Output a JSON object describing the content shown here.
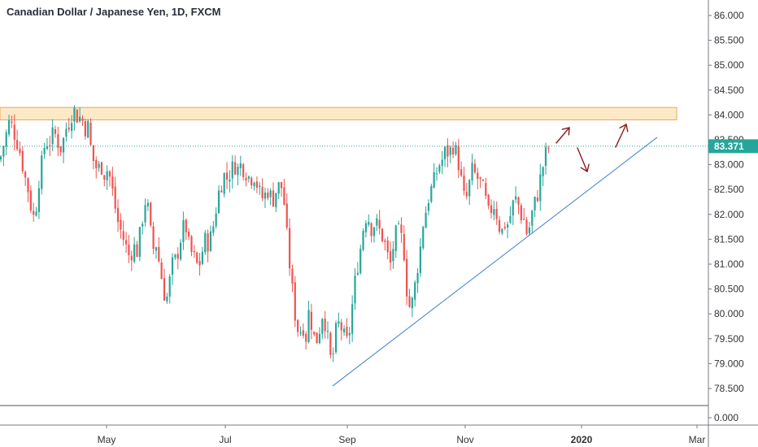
{
  "title": "Canadian Dollar / Japanese Yen, 1D, FXCM",
  "colors": {
    "up": "#26a69a",
    "down": "#ef5350",
    "resistance_fill": "#fde9c8",
    "resistance_stroke": "#e9a955",
    "trendline": "#3d7fd0",
    "last_price_line": "#26a69a",
    "arrow": "#8b1a1a"
  },
  "chart_data": {
    "type": "candlestick",
    "title": "Canadian Dollar / Japanese Yen, 1D, FXCM",
    "y_axis": {
      "position": "right",
      "ticks": [
        "86.000",
        "85.500",
        "85.000",
        "84.500",
        "84.000",
        "83.500",
        "83.000",
        "82.500",
        "82.000",
        "81.500",
        "81.000",
        "80.500",
        "80.000",
        "79.500",
        "79.000",
        "78.500"
      ],
      "range": [
        78.2,
        86.1
      ],
      "volume_pane_tick": "0.000"
    },
    "x_axis": {
      "ticks": [
        "May",
        "Jul",
        "Sep",
        "Nov",
        "2020",
        "Mar"
      ],
      "bold_ticks": [
        "2020"
      ]
    },
    "last_price": 83.371,
    "last_price_label": "83.371",
    "grid": false,
    "close_path": [
      [
        0,
        83.1
      ],
      [
        6,
        83.5
      ],
      [
        12,
        83.9
      ],
      [
        18,
        83.6
      ],
      [
        24,
        83.3
      ],
      [
        30,
        82.8
      ],
      [
        36,
        82.4
      ],
      [
        40,
        81.9
      ],
      [
        44,
        82.1
      ],
      [
        48,
        82.7
      ],
      [
        52,
        83.1
      ],
      [
        56,
        83.5
      ],
      [
        60,
        83.4
      ],
      [
        64,
        83.6
      ],
      [
        68,
        83.6
      ],
      [
        72,
        83.4
      ],
      [
        76,
        83.3
      ],
      [
        80,
        83.7
      ],
      [
        84,
        83.8
      ],
      [
        88,
        84.0
      ],
      [
        92,
        84.1
      ],
      [
        96,
        83.9
      ],
      [
        100,
        84.0
      ],
      [
        104,
        83.7
      ],
      [
        108,
        83.8
      ],
      [
        112,
        83.3
      ],
      [
        116,
        83.0
      ],
      [
        120,
        82.9
      ],
      [
        124,
        83.0
      ],
      [
        128,
        82.8
      ],
      [
        132,
        82.9
      ],
      [
        136,
        82.7
      ],
      [
        140,
        82.3
      ],
      [
        144,
        81.9
      ],
      [
        148,
        81.7
      ],
      [
        152,
        81.5
      ],
      [
        156,
        81.3
      ],
      [
        160,
        81.1
      ],
      [
        164,
        81.4
      ],
      [
        168,
        81.2
      ],
      [
        172,
        81.6
      ],
      [
        176,
        82.0
      ],
      [
        180,
        82.4
      ],
      [
        184,
        81.8
      ],
      [
        188,
        81.3
      ],
      [
        192,
        81.4
      ],
      [
        196,
        81.0
      ],
      [
        200,
        80.6
      ],
      [
        204,
        80.2
      ],
      [
        208,
        80.6
      ],
      [
        212,
        81.0
      ],
      [
        216,
        81.1
      ],
      [
        220,
        81.3
      ],
      [
        224,
        81.7
      ],
      [
        228,
        81.8
      ],
      [
        232,
        81.4
      ],
      [
        236,
        81.2
      ],
      [
        240,
        81.1
      ],
      [
        244,
        80.9
      ],
      [
        248,
        81.2
      ],
      [
        252,
        81.5
      ],
      [
        256,
        81.4
      ],
      [
        260,
        81.6
      ],
      [
        264,
        81.9
      ],
      [
        268,
        82.4
      ],
      [
        272,
        82.6
      ],
      [
        276,
        82.8
      ],
      [
        280,
        82.7
      ],
      [
        284,
        82.9
      ],
      [
        288,
        83.0
      ],
      [
        292,
        82.9
      ],
      [
        296,
        83.0
      ],
      [
        300,
        82.9
      ],
      [
        304,
        82.8
      ],
      [
        308,
        82.7
      ],
      [
        312,
        82.8
      ],
      [
        316,
        82.6
      ],
      [
        320,
        82.4
      ],
      [
        324,
        82.3
      ],
      [
        328,
        82.5
      ],
      [
        332,
        82.4
      ],
      [
        336,
        82.3
      ],
      [
        340,
        82.5
      ],
      [
        344,
        82.6
      ],
      [
        348,
        82.5
      ],
      [
        352,
        81.7
      ],
      [
        356,
        81.0
      ],
      [
        360,
        80.4
      ],
      [
        364,
        79.8
      ],
      [
        368,
        79.6
      ],
      [
        372,
        79.8
      ],
      [
        376,
        79.5
      ],
      [
        380,
        80.1
      ],
      [
        384,
        79.7
      ],
      [
        388,
        79.4
      ],
      [
        392,
        79.6
      ],
      [
        396,
        80.0
      ],
      [
        400,
        79.8
      ],
      [
        404,
        79.4
      ],
      [
        408,
        78.9
      ],
      [
        412,
        79.6
      ],
      [
        416,
        79.8
      ],
      [
        420,
        79.7
      ],
      [
        424,
        79.5
      ],
      [
        428,
        79.4
      ],
      [
        432,
        80.0
      ],
      [
        436,
        80.6
      ],
      [
        440,
        81.0
      ],
      [
        444,
        81.4
      ],
      [
        448,
        81.9
      ],
      [
        452,
        82.0
      ],
      [
        456,
        81.7
      ],
      [
        460,
        81.8
      ],
      [
        464,
        81.8
      ],
      [
        468,
        81.6
      ],
      [
        472,
        81.5
      ],
      [
        476,
        81.2
      ],
      [
        480,
        81.0
      ],
      [
        484,
        81.4
      ],
      [
        488,
        81.7
      ],
      [
        492,
        81.6
      ],
      [
        496,
        81.4
      ],
      [
        500,
        80.5
      ],
      [
        504,
        80.1
      ],
      [
        508,
        80.3
      ],
      [
        512,
        80.8
      ],
      [
        516,
        81.2
      ],
      [
        520,
        81.8
      ],
      [
        524,
        82.1
      ],
      [
        528,
        82.4
      ],
      [
        532,
        82.6
      ],
      [
        536,
        82.8
      ],
      [
        540,
        83.0
      ],
      [
        544,
        83.1
      ],
      [
        548,
        83.3
      ],
      [
        552,
        83.2
      ],
      [
        556,
        83.4
      ],
      [
        560,
        83.3
      ],
      [
        564,
        83.0
      ],
      [
        568,
        82.6
      ],
      [
        572,
        82.2
      ],
      [
        576,
        82.5
      ],
      [
        580,
        82.9
      ],
      [
        584,
        82.8
      ],
      [
        588,
        82.7
      ],
      [
        592,
        82.6
      ],
      [
        596,
        82.4
      ],
      [
        600,
        82.0
      ],
      [
        604,
        82.1
      ],
      [
        608,
        82.2
      ],
      [
        612,
        81.9
      ],
      [
        616,
        81.6
      ],
      [
        620,
        81.8
      ],
      [
        624,
        81.8
      ],
      [
        628,
        82.0
      ],
      [
        632,
        82.3
      ],
      [
        636,
        82.3
      ],
      [
        640,
        82.0
      ],
      [
        644,
        81.9
      ],
      [
        648,
        81.6
      ],
      [
        652,
        81.8
      ],
      [
        656,
        82.2
      ],
      [
        660,
        82.3
      ],
      [
        664,
        82.7
      ],
      [
        668,
        83.0
      ],
      [
        672,
        83.3
      ],
      [
        676,
        83.37
      ]
    ],
    "resistance_zone": {
      "y_low": 83.9,
      "y_high": 84.15
    },
    "trendline": {
      "from": [
        409,
        78.55
      ],
      "to": [
        808,
        83.55
      ]
    }
  }
}
